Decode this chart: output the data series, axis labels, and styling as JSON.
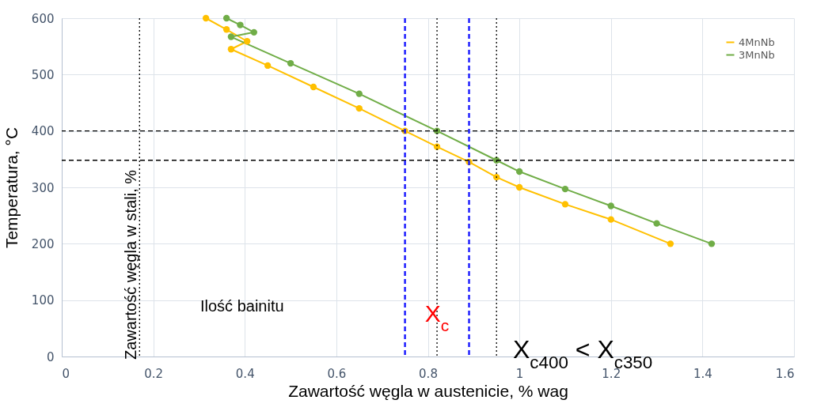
{
  "chart_data": {
    "type": "line",
    "xlabel": "Zawartość węgla w austenicie, % wag",
    "ylabel": "Temperatura, °C",
    "xlim": [
      0,
      1.6
    ],
    "xticks": [
      0,
      0.2,
      0.4,
      0.6,
      0.8,
      1,
      1.2,
      1.4,
      1.6
    ],
    "ylim": [
      0,
      600
    ],
    "yticks": [
      0,
      100,
      200,
      300,
      400,
      500,
      600
    ],
    "grid": true,
    "legend": "top right",
    "marker": "circle",
    "series": [
      {
        "name": "4MnNb",
        "color": "#ffc000",
        "x": [
          0.315,
          0.36,
          0.405,
          0.37,
          0.45,
          0.55,
          0.65,
          0.75,
          0.82,
          0.89,
          0.95,
          1.0,
          1.1,
          1.2,
          1.33
        ],
        "values": [
          600,
          580,
          559,
          545,
          516,
          478,
          440,
          400,
          372,
          345,
          318,
          300,
          270,
          243,
          200
        ]
      },
      {
        "name": "3MnNb",
        "color": "#70ad47",
        "x": [
          0.36,
          0.39,
          0.42,
          0.37,
          0.5,
          0.65,
          0.82,
          0.95,
          1.0,
          1.1,
          1.2,
          1.3,
          1.42
        ],
        "values": [
          600,
          588,
          575,
          567,
          520,
          466,
          400,
          348,
          328,
          297,
          267,
          236,
          200
        ]
      }
    ],
    "ref_lines": [
      {
        "axis": "y",
        "value": 400,
        "color": "#000000",
        "line_style": "dashed"
      },
      {
        "axis": "y",
        "value": 348,
        "color": "#000000",
        "line_style": "dashed"
      },
      {
        "axis": "x",
        "value": 0.17,
        "label": "Zawartość węgla w stali, %",
        "color": "#000000",
        "line_style": "dotted"
      },
      {
        "axis": "x",
        "value": 0.82,
        "color": "#000000",
        "line_style": "dotted"
      },
      {
        "axis": "x",
        "value": 0.95,
        "color": "#000000",
        "line_style": "dotted"
      },
      {
        "axis": "x",
        "value": 0.75,
        "color": "#2020ff",
        "line_style": "dashed"
      },
      {
        "axis": "x",
        "value": 0.89,
        "color": "#2020ff",
        "line_style": "dashed"
      }
    ],
    "annotations": [
      "Ilość bainitu",
      {
        "text": "X$_{c}$",
        "x": 0.82,
        "y": 44
      },
      "X$_{c400}$ < X$_{c350}$"
    ]
  }
}
